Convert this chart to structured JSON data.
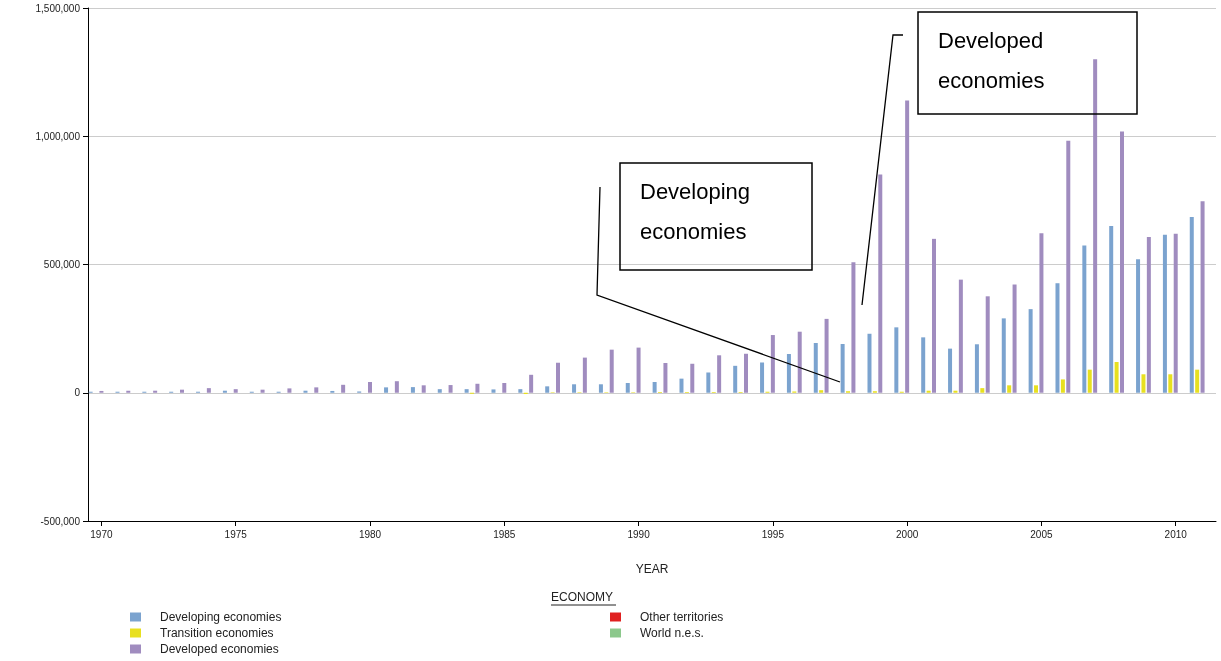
{
  "chart_data": {
    "type": "bar",
    "xlabel": "YEAR",
    "legend_title": "ECONOMY",
    "categories": [
      "1970",
      null,
      null,
      null,
      null,
      "1975",
      null,
      null,
      null,
      null,
      "1980",
      null,
      null,
      null,
      null,
      "1985",
      null,
      null,
      null,
      null,
      "1990",
      null,
      null,
      null,
      null,
      "1995",
      null,
      null,
      null,
      null,
      "2000",
      null,
      null,
      null,
      null,
      "2005",
      null,
      null,
      null,
      null,
      "2010",
      null
    ],
    "series": [
      {
        "name": "Developing economies",
        "color": "#7ba3cf",
        "values": [
          4000,
          4000,
          4000,
          4000,
          4000,
          8000,
          4000,
          4000,
          8000,
          7000,
          5000,
          21000,
          22000,
          14000,
          14000,
          13000,
          14000,
          25000,
          33000,
          33000,
          38000,
          42000,
          55000,
          79000,
          105000,
          118000,
          151000,
          194000,
          190000,
          230000,
          255000,
          216000,
          172000,
          189000,
          290000,
          326000,
          427000,
          574000,
          650000,
          520000,
          616000,
          685000
        ]
      },
      {
        "name": "Transition economies",
        "color": "#e8e020",
        "values": [
          null,
          null,
          null,
          null,
          null,
          null,
          null,
          null,
          null,
          null,
          0,
          0,
          0,
          0,
          -4000,
          0,
          -5000,
          2000,
          2000,
          2000,
          2000,
          3000,
          3000,
          3000,
          3000,
          4000,
          5000,
          10000,
          6000,
          6000,
          4000,
          8000,
          8000,
          18000,
          29000,
          29000,
          52000,
          90000,
          120000,
          72000,
          72000,
          90000
        ]
      },
      {
        "name": "Developed economies",
        "color": "#a08cbf",
        "values": [
          7000,
          8000,
          8000,
          12000,
          18000,
          14000,
          12000,
          17000,
          21000,
          31000,
          42000,
          45000,
          29000,
          30000,
          35000,
          38000,
          70000,
          117000,
          137000,
          168000,
          176000,
          116000,
          113000,
          146000,
          152000,
          225000,
          238000,
          288000,
          509000,
          851000,
          1139000,
          600000,
          441000,
          376000,
          422000,
          622000,
          982000,
          1300000,
          1019000,
          607000,
          620000,
          747000
        ]
      },
      {
        "name": "Other territories",
        "color": "#e02020",
        "values": [
          null,
          null,
          null,
          null,
          null,
          null,
          null,
          null,
          null,
          null,
          null,
          null,
          null,
          null,
          null,
          null,
          null,
          null,
          null,
          null,
          null,
          null,
          null,
          null,
          null,
          null,
          null,
          null,
          null,
          null,
          null,
          null,
          null,
          null,
          null,
          null,
          null,
          null,
          null,
          null,
          null,
          null
        ]
      },
      {
        "name": "World n.e.s.",
        "color": "#8cc88c",
        "values": [
          null,
          null,
          null,
          null,
          null,
          null,
          null,
          null,
          null,
          null,
          null,
          null,
          null,
          null,
          null,
          null,
          null,
          null,
          null,
          null,
          null,
          null,
          null,
          null,
          null,
          null,
          null,
          null,
          null,
          null,
          null,
          null,
          null,
          null,
          null,
          null,
          null,
          null,
          null,
          null,
          null,
          null
        ]
      }
    ],
    "ylim": [
      -500000,
      1500000
    ],
    "yticks": [
      {
        "value": -500000,
        "label": "-500,000"
      },
      {
        "value": 0,
        "label": "0"
      },
      {
        "value": 500000,
        "label": "500,000"
      },
      {
        "value": 1000000,
        "label": "1,000,000"
      },
      {
        "value": 1500000,
        "label": "1,500,000"
      }
    ],
    "grid": "y",
    "legend": "bottom",
    "annotations": [
      "Developing economies",
      "Developed economies"
    ]
  }
}
